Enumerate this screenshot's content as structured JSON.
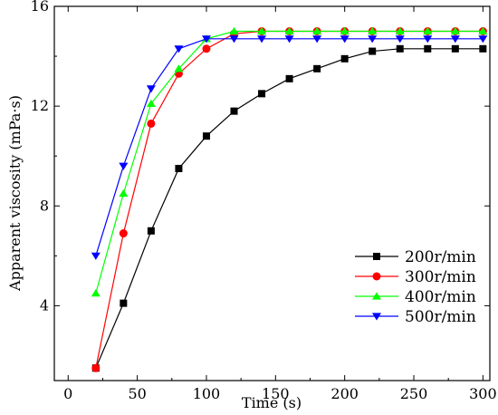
{
  "chart_data": {
    "type": "line",
    "xlabel": "Time (s)",
    "ylabel": "Apparent viscosity (mPa·s)",
    "xlim": [
      -10,
      305
    ],
    "ylim": [
      1,
      16
    ],
    "xticks": [
      0,
      50,
      100,
      150,
      200,
      250,
      300
    ],
    "yticks": [
      4,
      8,
      12,
      16
    ],
    "xtick_labels": [
      "0",
      "50",
      "100",
      "150",
      "200",
      "250",
      "300"
    ],
    "ytick_labels": [
      "4",
      "8",
      "12",
      "16"
    ],
    "grid": false,
    "legend_position": "bottom-right",
    "x": [
      20,
      40,
      60,
      80,
      100,
      120,
      140,
      160,
      180,
      200,
      220,
      240,
      260,
      280,
      300
    ],
    "series": [
      {
        "name": "200r/min",
        "color": "#000000",
        "marker": "square",
        "values": [
          1.5,
          4.1,
          7.0,
          9.5,
          10.8,
          11.8,
          12.5,
          13.1,
          13.5,
          13.9,
          14.2,
          14.3,
          14.3,
          14.3,
          14.3
        ]
      },
      {
        "name": "300r/min",
        "color": "#ff0000",
        "marker": "circle",
        "values": [
          1.5,
          6.9,
          11.3,
          13.3,
          14.3,
          14.9,
          15.0,
          15.0,
          15.0,
          15.0,
          15.0,
          15.0,
          15.0,
          15.0,
          15.0
        ]
      },
      {
        "name": "400r/min",
        "color": "#00ff00",
        "marker": "triangle-up",
        "values": [
          4.5,
          8.5,
          12.1,
          13.5,
          14.7,
          15.0,
          15.0,
          15.0,
          15.0,
          15.0,
          15.0,
          15.0,
          15.0,
          15.0,
          15.0
        ]
      },
      {
        "name": "500r/min",
        "color": "#0000ff",
        "marker": "triangle-down",
        "values": [
          6.0,
          9.6,
          12.7,
          14.3,
          14.7,
          14.7,
          14.7,
          14.7,
          14.7,
          14.7,
          14.7,
          14.7,
          14.7,
          14.7,
          14.7
        ]
      }
    ]
  }
}
